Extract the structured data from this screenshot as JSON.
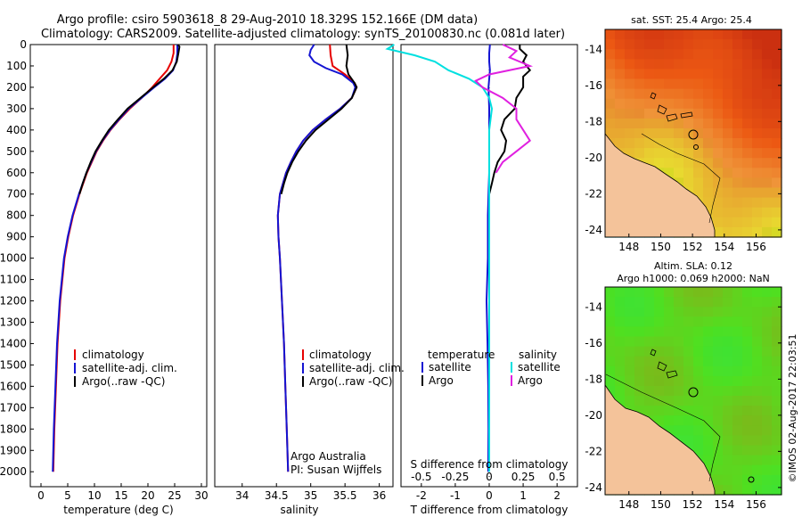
{
  "title_line1": "Argo profile: csiro 5903618_8 29-Aug-2010 18.329S 152.166E (DM data)",
  "title_line2": "Climatology: CARS2009. Satellite-adjusted climatology: synTS_20100830.nc (0.081d later)",
  "watermark": "©IMOS 02-Aug-2017 22:03:51",
  "colors": {
    "climatology": "#e60000",
    "satellite": "#1414d2",
    "argo": "#000000",
    "cyan": "#00e0e0",
    "magenta": "#e020e0"
  },
  "chart_data": [
    {
      "id": "temperature",
      "type": "line",
      "xlabel": "temperature (deg C)",
      "xlim": [
        -2,
        31
      ],
      "ylim": [
        0,
        2070
      ],
      "xticks": [
        0,
        5,
        10,
        15,
        20,
        25,
        30
      ],
      "yticks": [
        0,
        100,
        200,
        300,
        400,
        500,
        600,
        700,
        800,
        900,
        1000,
        1100,
        1200,
        1300,
        1400,
        1500,
        1600,
        1700,
        1800,
        1900,
        2000
      ],
      "legend": [
        "climatology",
        "satellite-adj. clim.",
        "Argo(..raw -QC)"
      ],
      "series": [
        {
          "name": "climatology",
          "depth": [
            0,
            40,
            80,
            120,
            160,
            200,
            250,
            300,
            350,
            400,
            450,
            500,
            550,
            600,
            700,
            800,
            900,
            1000,
            1200,
            1400,
            1600,
            1800,
            2000
          ],
          "values": [
            24.8,
            24.8,
            24.4,
            23.6,
            22.2,
            20.8,
            18.8,
            16.6,
            14.7,
            13.0,
            11.6,
            10.4,
            9.5,
            8.6,
            7.2,
            6.0,
            5.1,
            4.4,
            3.6,
            3.1,
            2.8,
            2.5,
            2.3
          ]
        },
        {
          "name": "satellite-adj. clim.",
          "depth": [
            0,
            40,
            80,
            120,
            160,
            200,
            250,
            300,
            350,
            400,
            450,
            500,
            550,
            600,
            700,
            800,
            900,
            1000,
            1200,
            1400,
            1600,
            1800,
            2000
          ],
          "values": [
            25.5,
            25.5,
            25.3,
            24.7,
            23.2,
            21.2,
            18.8,
            16.4,
            14.6,
            12.9,
            11.5,
            10.3,
            9.4,
            8.5,
            7.1,
            5.9,
            5.0,
            4.3,
            3.5,
            3.0,
            2.7,
            2.4,
            2.2
          ]
        },
        {
          "name": "Argo(..raw -QC)",
          "depth": [
            0,
            10,
            40,
            80,
            120,
            160,
            200,
            250,
            300,
            350,
            400,
            450,
            500,
            550,
            600,
            650,
            700
          ],
          "values": [
            25.6,
            25.9,
            25.7,
            25.4,
            24.6,
            23.0,
            21.0,
            18.6,
            16.2,
            14.4,
            12.7,
            11.4,
            10.2,
            9.3,
            8.5,
            7.8,
            7.2
          ]
        }
      ]
    },
    {
      "id": "salinity",
      "type": "line",
      "xlabel": "salinity",
      "xlim": [
        33.6,
        36.2
      ],
      "ylim": [
        0,
        2070
      ],
      "xticks": [
        34,
        34.5,
        35,
        35.5,
        36
      ],
      "legend": [
        "climatology",
        "satellite-adj. clim.",
        "Argo(..raw -QC)"
      ],
      "annotation_line1": "Argo Australia",
      "annotation_line2": "PI: Susan Wijffels",
      "series": [
        {
          "name": "climatology",
          "depth": [
            0,
            50,
            100,
            140,
            180,
            200,
            250,
            300,
            350,
            400,
            450,
            500,
            550,
            600,
            700,
            800,
            900,
            1000,
            1200,
            1400,
            1600,
            1800,
            2000
          ],
          "values": [
            35.28,
            35.29,
            35.32,
            35.5,
            35.64,
            35.67,
            35.6,
            35.43,
            35.22,
            35.03,
            34.89,
            34.79,
            34.71,
            34.64,
            34.55,
            34.52,
            34.53,
            34.55,
            34.58,
            34.61,
            34.63,
            34.65,
            34.67
          ]
        },
        {
          "name": "satellite-adj. clim.",
          "depth": [
            0,
            25,
            50,
            80,
            110,
            140,
            180,
            200,
            250,
            300,
            350,
            400,
            450,
            500,
            550,
            600,
            700,
            800,
            900,
            1000,
            1200,
            1400,
            1600,
            1800,
            2000
          ],
          "values": [
            35.05,
            35.0,
            34.98,
            35.05,
            35.22,
            35.46,
            35.62,
            35.65,
            35.6,
            35.43,
            35.22,
            35.03,
            34.89,
            34.79,
            34.71,
            34.64,
            34.55,
            34.52,
            34.53,
            34.55,
            34.58,
            34.61,
            34.63,
            34.65,
            34.67
          ]
        },
        {
          "name": "Argo(..raw -QC)",
          "depth": [
            0,
            50,
            100,
            140,
            180,
            200,
            250,
            300,
            350,
            400,
            450,
            500,
            550,
            600,
            650,
            700
          ],
          "values": [
            35.52,
            35.54,
            35.52,
            35.55,
            35.64,
            35.67,
            35.6,
            35.45,
            35.26,
            35.07,
            34.93,
            34.82,
            34.73,
            34.66,
            34.61,
            34.57
          ]
        }
      ]
    },
    {
      "id": "difference",
      "type": "line",
      "xlabel": "T difference from climatology",
      "xlabel_top": "S difference from climatology",
      "xlim": [
        -2.6,
        2.6
      ],
      "ylim": [
        0,
        2070
      ],
      "xticks": [
        -2,
        -1,
        0,
        1,
        2
      ],
      "xticks_S": [
        "-0.5",
        "-0.25",
        "0",
        "0.25",
        "0.5"
      ],
      "legend_t_header": "temperature",
      "legend_s_header": "salinity",
      "legend_satellite": "satellite",
      "legend_argo": "Argo",
      "series": [
        {
          "name": "temperature satellite",
          "depth": [
            0,
            40,
            80,
            120,
            160,
            200,
            300,
            400,
            500,
            600,
            700,
            800,
            900,
            1000,
            1200,
            1400,
            1600,
            1800,
            2000
          ],
          "values": [
            0.02,
            0.0,
            0.0,
            0.02,
            0.0,
            -0.02,
            0.0,
            0.0,
            0.0,
            0.0,
            -0.02,
            -0.04,
            -0.04,
            -0.04,
            -0.08,
            -0.05,
            -0.03,
            -0.02,
            -0.03
          ]
        },
        {
          "name": "temperature Argo",
          "depth": [
            0,
            20,
            50,
            80,
            120,
            150,
            200,
            250,
            300,
            350,
            400,
            450,
            500,
            550,
            600,
            650,
            700
          ],
          "values": [
            0.9,
            0.9,
            1.1,
            1.0,
            1.2,
            1.0,
            1.0,
            0.8,
            0.75,
            0.45,
            0.35,
            0.5,
            0.45,
            0.25,
            0.15,
            0.08,
            0.0
          ]
        },
        {
          "name": "salinity satellite",
          "depth": [
            0,
            20,
            50,
            80,
            120,
            160,
            200,
            250,
            300,
            400,
            500,
            600,
            700,
            800,
            900,
            1000,
            1200,
            1400,
            1600,
            1800,
            2000
          ],
          "values": [
            -0.7,
            -0.75,
            -0.55,
            -0.4,
            -0.3,
            -0.15,
            -0.05,
            0.0,
            0.02,
            0.0,
            0.0,
            0.0,
            0.0,
            0.0,
            0.0,
            0.0,
            0.0,
            0.0,
            0.0,
            0.0,
            0.0
          ]
        },
        {
          "name": "salinity Argo",
          "depth": [
            0,
            30,
            60,
            100,
            140,
            170,
            200,
            250,
            300,
            350,
            400,
            450,
            500,
            550,
            600
          ],
          "values": [
            0.1,
            0.2,
            0.15,
            0.3,
            0.0,
            -0.1,
            -0.05,
            0.1,
            0.2,
            0.2,
            0.25,
            0.3,
            0.2,
            0.1,
            0.05
          ]
        }
      ]
    },
    {
      "id": "sst_map",
      "type": "heatmap",
      "title": "sat. SST: 25.4 Argo: 25.4",
      "xticks": [
        148,
        150,
        152,
        154,
        156
      ],
      "yticks": [
        -14,
        -16,
        -18,
        -20,
        -22,
        -24
      ],
      "xlim": [
        146.5,
        157.6
      ],
      "ylim": [
        -24.4,
        -12.9
      ]
    },
    {
      "id": "sla_map",
      "type": "heatmap",
      "title_line1": "Altim. SLA: 0.12",
      "title_line2": "Argo h1000: 0.069 h2000: NaN",
      "xticks": [
        148,
        150,
        152,
        154,
        156
      ],
      "yticks": [
        -14,
        -16,
        -18,
        -20,
        -22,
        -24
      ],
      "xlim": [
        146.5,
        157.6
      ],
      "ylim": [
        -24.4,
        -12.9
      ]
    }
  ]
}
